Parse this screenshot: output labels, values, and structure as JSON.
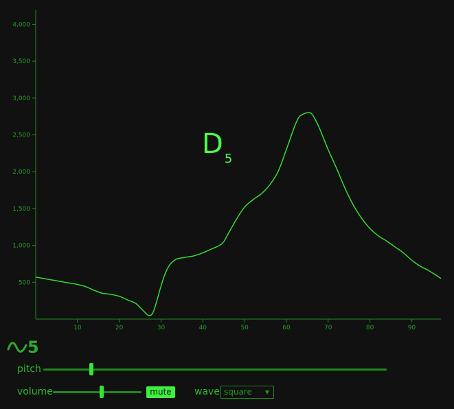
{
  "note": {
    "letter": "D",
    "octave": "5"
  },
  "logo": {
    "icon": "sine-wave-icon",
    "number": "5"
  },
  "controls": {
    "pitch": {
      "label": "pitch",
      "value_fraction": 0.14
    },
    "volume": {
      "label": "volume",
      "value_fraction": 0.55
    },
    "mute_label": "mute",
    "wave_label": "wave",
    "wave_selected": "square"
  },
  "colors": {
    "background": "#111111",
    "line": "#33dd33",
    "accent": "#3ef03e"
  },
  "chart_data": {
    "type": "line",
    "title": "",
    "xlabel": "",
    "ylabel": "",
    "xlim": [
      0,
      97
    ],
    "ylim": [
      0,
      4200
    ],
    "xticks": [
      10,
      20,
      30,
      40,
      50,
      60,
      70,
      80,
      90
    ],
    "xtick_labels": [
      "10",
      "20",
      "30",
      "40",
      "50",
      "60",
      "70",
      "80",
      "90"
    ],
    "yticks": [
      500,
      1000,
      1500,
      2000,
      2500,
      3000,
      3500,
      4000
    ],
    "ytick_labels": [
      "500",
      "1,000",
      "1,500",
      "2,000",
      "2,500",
      "3,000",
      "3,500",
      "4,000"
    ],
    "grid": false,
    "series": [
      {
        "x": [
          0,
          2,
          4,
          6,
          8,
          10,
          12,
          14,
          16,
          18,
          20,
          22,
          24,
          26,
          27,
          28,
          29,
          30,
          31,
          32,
          33,
          34,
          36,
          38,
          40,
          42,
          44,
          45,
          46,
          48,
          50,
          52,
          54,
          56,
          58,
          60,
          62,
          63,
          64,
          65,
          66,
          67,
          68,
          70,
          72,
          74,
          76,
          78,
          80,
          82,
          84,
          86,
          88,
          90,
          92,
          94,
          96,
          97
        ],
        "y": [
          570,
          550,
          530,
          510,
          490,
          470,
          440,
          390,
          350,
          335,
          310,
          260,
          210,
          100,
          50,
          80,
          250,
          450,
          620,
          730,
          790,
          820,
          840,
          860,
          900,
          950,
          1000,
          1050,
          1150,
          1350,
          1520,
          1620,
          1700,
          1820,
          2000,
          2300,
          2620,
          2740,
          2780,
          2800,
          2790,
          2700,
          2580,
          2300,
          2050,
          1780,
          1550,
          1370,
          1230,
          1130,
          1060,
          980,
          900,
          800,
          720,
          660,
          590,
          550
        ]
      }
    ]
  }
}
